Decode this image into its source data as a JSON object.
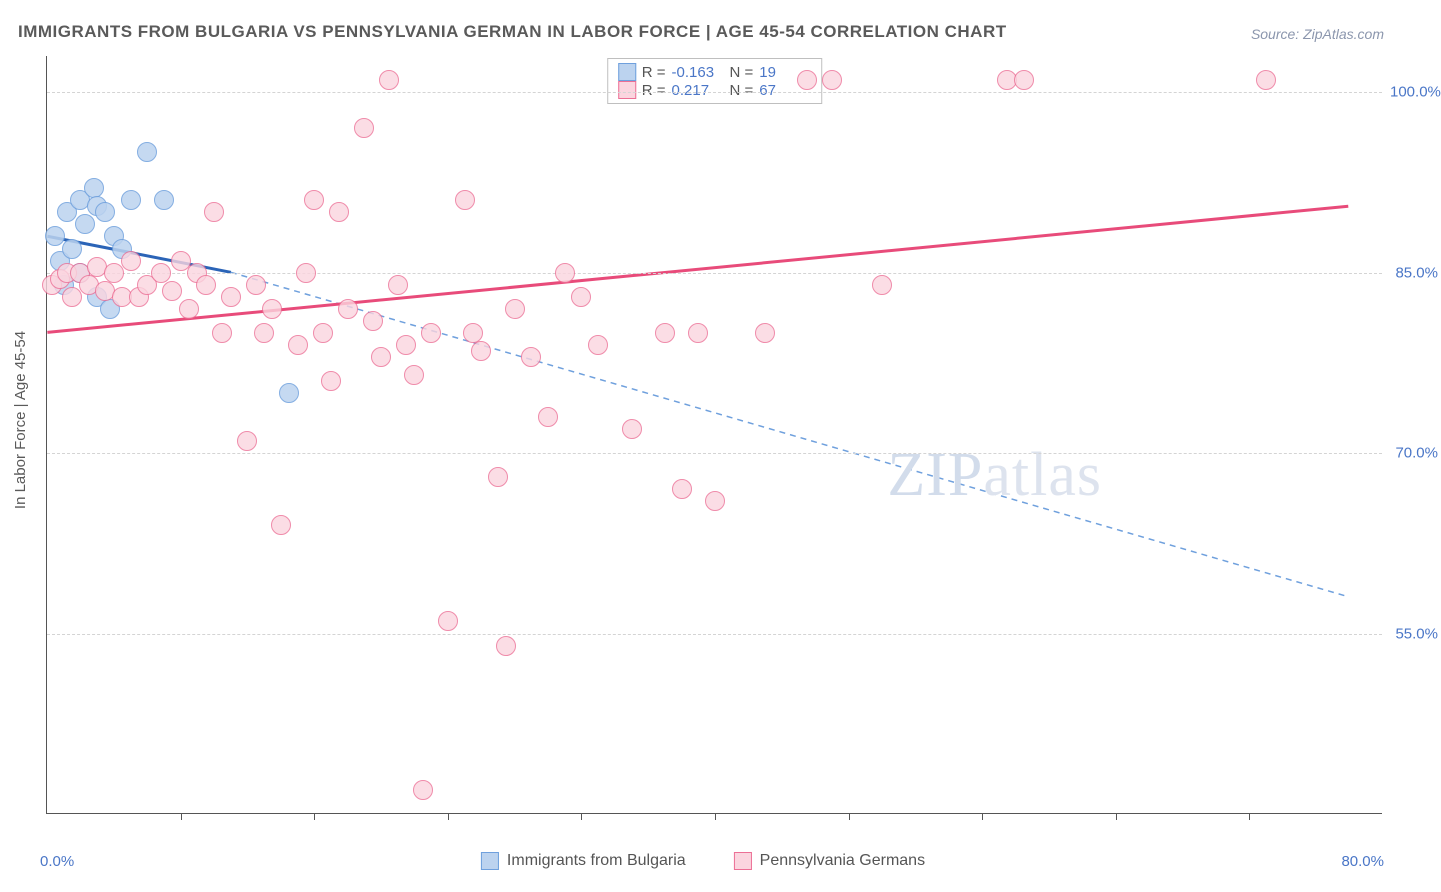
{
  "title": "IMMIGRANTS FROM BULGARIA VS PENNSYLVANIA GERMAN IN LABOR FORCE | AGE 45-54 CORRELATION CHART",
  "source": "Source: ZipAtlas.com",
  "y_axis_title": "In Labor Force | Age 45-54",
  "watermark": {
    "a": "ZIP",
    "b": "atlas"
  },
  "chart": {
    "type": "scatter",
    "background_color": "#ffffff",
    "grid_color": "#d4d4d4",
    "axis_color": "#555555",
    "label_color": "#4a76c7",
    "label_fontsize": 15,
    "title_fontsize": 17,
    "xlim": [
      0,
      80
    ],
    "ylim": [
      40,
      103
    ],
    "x_tick_positions": [
      8,
      16,
      24,
      32,
      40,
      48,
      56,
      64,
      72
    ],
    "x_tick_labels": {
      "min": "0.0%",
      "max": "80.0%"
    },
    "y_ticks": [
      {
        "v": 55,
        "label": "55.0%"
      },
      {
        "v": 70,
        "label": "70.0%"
      },
      {
        "v": 85,
        "label": "85.0%"
      },
      {
        "v": 100,
        "label": "100.0%"
      }
    ],
    "series": [
      {
        "name": "Immigrants from Bulgaria",
        "marker_fill": "#bcd3ef",
        "marker_stroke": "#6fa0dd",
        "marker_size": 20,
        "marker_opacity": 0.85,
        "R": "-0.163",
        "N": "19",
        "trend": {
          "solid": {
            "x1": 0,
            "y1": 88,
            "x2": 11,
            "y2": 85,
            "color": "#2b64b7",
            "width": 3
          },
          "dashed": {
            "x1": 11,
            "y1": 85,
            "x2": 78,
            "y2": 58,
            "color": "#6fa0dd",
            "width": 1.5,
            "dash": "6,5"
          }
        },
        "points": [
          {
            "x": 0.5,
            "y": 88
          },
          {
            "x": 0.8,
            "y": 86
          },
          {
            "x": 1.2,
            "y": 90
          },
          {
            "x": 1.5,
            "y": 87
          },
          {
            "x": 2.0,
            "y": 91
          },
          {
            "x": 2.3,
            "y": 89
          },
          {
            "x": 2.8,
            "y": 92
          },
          {
            "x": 3.0,
            "y": 90.5
          },
          {
            "x": 3.5,
            "y": 90
          },
          {
            "x": 4.0,
            "y": 88
          },
          {
            "x": 5.0,
            "y": 91
          },
          {
            "x": 6.0,
            "y": 95
          },
          {
            "x": 7.0,
            "y": 91
          },
          {
            "x": 3.0,
            "y": 83
          },
          {
            "x": 3.8,
            "y": 82
          },
          {
            "x": 1.0,
            "y": 84
          },
          {
            "x": 2.0,
            "y": 85
          },
          {
            "x": 14.5,
            "y": 75
          },
          {
            "x": 4.5,
            "y": 87
          }
        ]
      },
      {
        "name": "Pennsylvania Germans",
        "marker_fill": "#fbd5df",
        "marker_stroke": "#ec6f95",
        "marker_size": 20,
        "marker_opacity": 0.8,
        "R": "0.217",
        "N": "67",
        "trend": {
          "solid": {
            "x1": 0,
            "y1": 80,
            "x2": 78,
            "y2": 90.5,
            "color": "#e84b7a",
            "width": 3
          }
        },
        "points": [
          {
            "x": 0.3,
            "y": 84
          },
          {
            "x": 0.8,
            "y": 84.5
          },
          {
            "x": 1.2,
            "y": 85
          },
          {
            "x": 1.5,
            "y": 83
          },
          {
            "x": 2.0,
            "y": 85
          },
          {
            "x": 2.5,
            "y": 84
          },
          {
            "x": 3.0,
            "y": 85.5
          },
          {
            "x": 3.5,
            "y": 83.5
          },
          {
            "x": 4.0,
            "y": 85
          },
          {
            "x": 4.5,
            "y": 83
          },
          {
            "x": 5.0,
            "y": 86
          },
          {
            "x": 5.5,
            "y": 83
          },
          {
            "x": 6.0,
            "y": 84
          },
          {
            "x": 6.8,
            "y": 85
          },
          {
            "x": 7.5,
            "y": 83.5
          },
          {
            "x": 8.0,
            "y": 86
          },
          {
            "x": 8.5,
            "y": 82
          },
          {
            "x": 9.0,
            "y": 85
          },
          {
            "x": 9.5,
            "y": 84
          },
          {
            "x": 10.0,
            "y": 90
          },
          {
            "x": 10.5,
            "y": 80
          },
          {
            "x": 11.0,
            "y": 83
          },
          {
            "x": 12.0,
            "y": 71
          },
          {
            "x": 12.5,
            "y": 84
          },
          {
            "x": 13.0,
            "y": 80
          },
          {
            "x": 13.5,
            "y": 82
          },
          {
            "x": 14.0,
            "y": 64
          },
          {
            "x": 15.0,
            "y": 79
          },
          {
            "x": 15.5,
            "y": 85
          },
          {
            "x": 16.0,
            "y": 91
          },
          {
            "x": 16.5,
            "y": 80
          },
          {
            "x": 17.0,
            "y": 76
          },
          {
            "x": 17.5,
            "y": 90
          },
          {
            "x": 18.0,
            "y": 82
          },
          {
            "x": 19.0,
            "y": 97
          },
          {
            "x": 19.5,
            "y": 81
          },
          {
            "x": 20.0,
            "y": 78
          },
          {
            "x": 20.5,
            "y": 101
          },
          {
            "x": 21.0,
            "y": 84
          },
          {
            "x": 21.5,
            "y": 79
          },
          {
            "x": 22.0,
            "y": 76.5
          },
          {
            "x": 22.5,
            "y": 42
          },
          {
            "x": 23.0,
            "y": 80
          },
          {
            "x": 24.0,
            "y": 56
          },
          {
            "x": 25.0,
            "y": 91
          },
          {
            "x": 25.5,
            "y": 80
          },
          {
            "x": 26.0,
            "y": 78.5
          },
          {
            "x": 27.0,
            "y": 68
          },
          {
            "x": 27.5,
            "y": 54
          },
          {
            "x": 28.0,
            "y": 82
          },
          {
            "x": 29.0,
            "y": 78
          },
          {
            "x": 30.0,
            "y": 73
          },
          {
            "x": 31.0,
            "y": 85
          },
          {
            "x": 32.0,
            "y": 83
          },
          {
            "x": 33.0,
            "y": 79
          },
          {
            "x": 35.0,
            "y": 72
          },
          {
            "x": 37.0,
            "y": 80
          },
          {
            "x": 38.0,
            "y": 67
          },
          {
            "x": 39.0,
            "y": 80
          },
          {
            "x": 40.0,
            "y": 66
          },
          {
            "x": 43.0,
            "y": 80
          },
          {
            "x": 45.5,
            "y": 101
          },
          {
            "x": 47.0,
            "y": 101
          },
          {
            "x": 50.0,
            "y": 84
          },
          {
            "x": 57.5,
            "y": 101
          },
          {
            "x": 58.5,
            "y": 101
          },
          {
            "x": 73.0,
            "y": 101
          }
        ]
      }
    ],
    "bottom_legend": [
      {
        "label": "Immigrants from Bulgaria",
        "fill": "#bcd3ef",
        "stroke": "#6fa0dd"
      },
      {
        "label": "Pennsylvania Germans",
        "fill": "#fbd5df",
        "stroke": "#ec6f95"
      }
    ]
  }
}
